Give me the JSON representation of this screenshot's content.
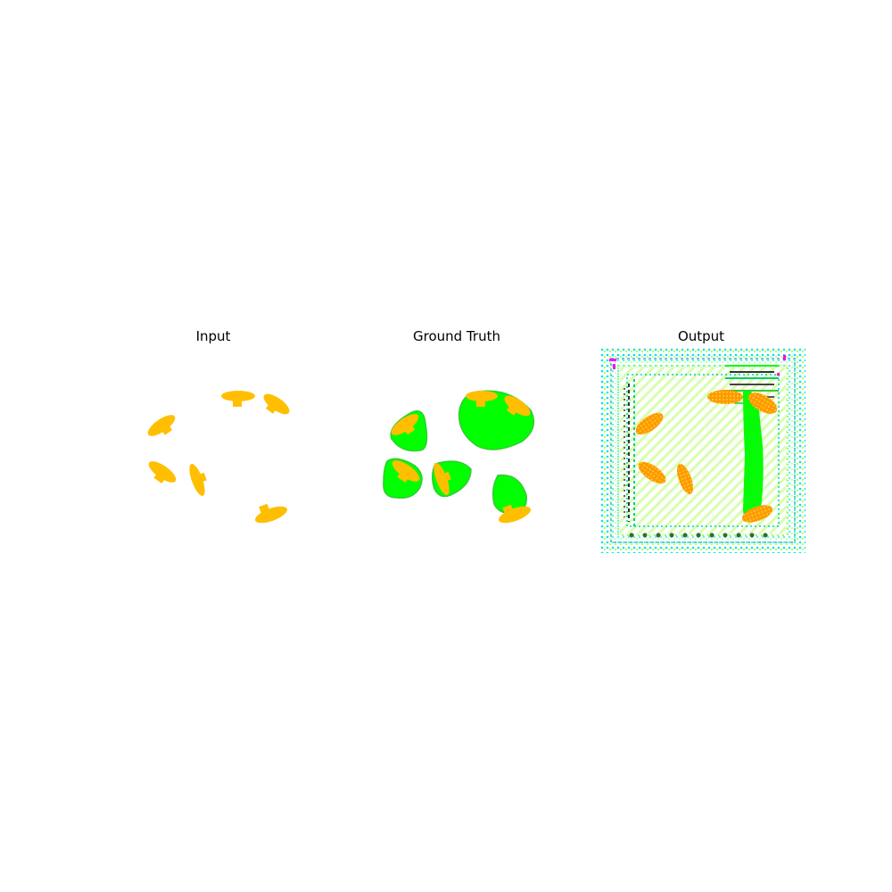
{
  "panels": [
    {
      "title": "Input"
    },
    {
      "title": "Ground Truth"
    },
    {
      "title": "Output"
    }
  ],
  "colors": {
    "object": "#ffbf00",
    "output_object": "#f0a020",
    "region": "#00ff00",
    "background": "#ffffff",
    "noise_cyan": "#00e5e5",
    "noise_magenta": "#ff00ff",
    "noise_lime": "#99ff33"
  }
}
